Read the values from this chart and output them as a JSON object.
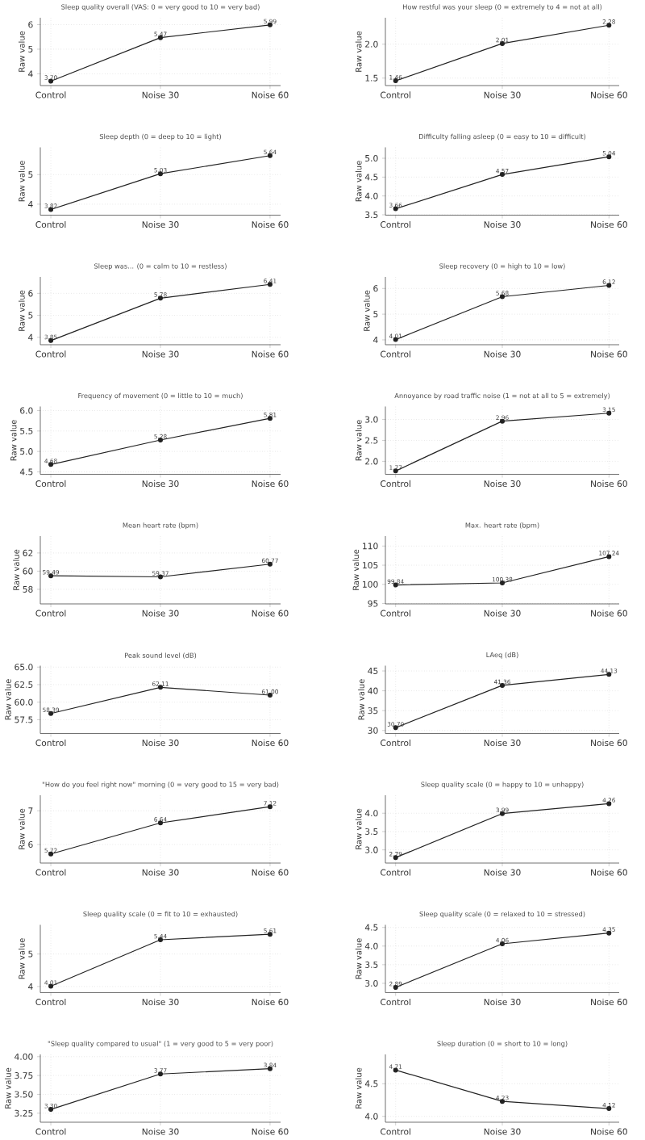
{
  "chart_data": [
    {
      "type": "line",
      "title": "Sleep quality overall (VAS: 0 = very good to 10 = very bad)",
      "ylabel": "Raw value",
      "categories": [
        "Control",
        "Noise 30",
        "Noise 60"
      ],
      "values": [
        3.7,
        5.47,
        5.99
      ],
      "value_labels": [
        "3.70",
        "5.47",
        "5.99"
      ],
      "color": "#222222",
      "ylim": [
        3.52,
        6.28
      ],
      "yticks": [
        4,
        5,
        6
      ],
      "grid": true,
      "marker": "circle"
    },
    {
      "type": "line",
      "title": "How restful was your sleep (0 = extremely to 4 = not at all)",
      "ylabel": "Raw value",
      "categories": [
        "Control",
        "Noise 30",
        "Noise 60"
      ],
      "values": [
        1.46,
        2.01,
        2.28
      ],
      "value_labels": [
        "1.46",
        "2.01",
        "2.28"
      ],
      "color": "#222222",
      "ylim": [
        1.39,
        2.39
      ],
      "yticks": [
        1.5,
        {
          "value": 2,
          "label": "2.0"
        }
      ],
      "grid": true,
      "marker": "circle"
    },
    {
      "type": "line",
      "title": "Sleep depth (0 = deep to 10 = light)",
      "ylabel": "Raw value",
      "categories": [
        "Control",
        "Noise 30",
        "Noise 60"
      ],
      "values": [
        3.82,
        5.03,
        5.64
      ],
      "value_labels": [
        "3.82",
        "5.03",
        "5.64"
      ],
      "color": "#222222",
      "ylim": [
        3.63,
        5.92
      ],
      "yticks": [
        4,
        5
      ],
      "grid": true,
      "marker": "circle"
    },
    {
      "type": "line",
      "title": "Difficulty falling asleep (0 = easy to 10 = difficult)",
      "ylabel": "Raw value",
      "categories": [
        "Control",
        "Noise 30",
        "Noise 60"
      ],
      "values": [
        3.66,
        4.57,
        5.04
      ],
      "value_labels": [
        "3.66",
        "4.57",
        "5.04"
      ],
      "color": "#222222",
      "ylim": [
        3.49,
        5.29
      ],
      "yticks": [
        3.5,
        {
          "value": 4,
          "label": "4.0"
        },
        4.5,
        {
          "value": 5,
          "label": "5.0"
        }
      ],
      "grid": true,
      "marker": "circle"
    },
    {
      "type": "line",
      "title": "Sleep was... (0 = calm to 10 = restless)",
      "ylabel": "Raw value",
      "categories": [
        "Control",
        "Noise 30",
        "Noise 60"
      ],
      "values": [
        3.85,
        5.78,
        6.41
      ],
      "value_labels": [
        "3.85",
        "5.78",
        "6.41"
      ],
      "color": "#222222",
      "ylim": [
        3.66,
        6.75
      ],
      "yticks": [
        4,
        5,
        6
      ],
      "grid": true,
      "marker": "circle"
    },
    {
      "type": "line",
      "title": "Sleep recovery (0 = high to 10 = low)",
      "ylabel": "Raw value",
      "categories": [
        "Control",
        "Noise 30",
        "Noise 60"
      ],
      "values": [
        4.01,
        5.68,
        6.12
      ],
      "value_labels": [
        "4.01",
        "5.68",
        "6.12"
      ],
      "color": "#222222",
      "ylim": [
        3.81,
        6.45
      ],
      "yticks": [
        4,
        5,
        6
      ],
      "grid": true,
      "marker": "circle"
    },
    {
      "type": "line",
      "title": "Frequency of movement (0 = little to 10 = much)",
      "ylabel": "Raw value",
      "categories": [
        "Control",
        "Noise 30",
        "Noise 60"
      ],
      "values": [
        4.68,
        5.28,
        5.81
      ],
      "value_labels": [
        "4.68",
        "5.28",
        "5.81"
      ],
      "color": "#222222",
      "ylim": [
        4.44,
        6.1
      ],
      "yticks": [
        4.5,
        {
          "value": 5,
          "label": "5.0"
        },
        5.5,
        {
          "value": 6,
          "label": "6.0"
        }
      ],
      "grid": true,
      "marker": "circle"
    },
    {
      "type": "line",
      "title": "Annoyance by road traffic noise (1 = not at all to 5 = extremely)",
      "ylabel": "Raw value",
      "categories": [
        "Control",
        "Noise 30",
        "Noise 60"
      ],
      "values": [
        1.77,
        2.96,
        3.15
      ],
      "value_labels": [
        "1.77",
        "2.96",
        "3.15"
      ],
      "color": "#222222",
      "ylim": [
        1.69,
        3.31
      ],
      "yticks": [
        {
          "value": 2,
          "label": "2.0"
        },
        2.5,
        {
          "value": 3,
          "label": "3.0"
        }
      ],
      "grid": true,
      "marker": "circle"
    },
    {
      "type": "line",
      "title": "Mean heart rate (bpm)",
      "ylabel": "Raw value",
      "categories": [
        "Control",
        "Noise 30",
        "Noise 60"
      ],
      "values": [
        59.49,
        59.37,
        60.77
      ],
      "value_labels": [
        "59.49",
        "59.37",
        "60.77"
      ],
      "color": "#222222",
      "ylim": [
        56.39,
        63.86
      ],
      "yticks": [
        58,
        60,
        62
      ],
      "grid": true,
      "marker": "circle"
    },
    {
      "type": "line",
      "title": "Max. heart rate (bpm)",
      "ylabel": "Raw value",
      "categories": [
        "Control",
        "Noise 30",
        "Noise 60"
      ],
      "values": [
        99.84,
        100.38,
        107.24
      ],
      "value_labels": [
        "99.84",
        "100.38",
        "107.24"
      ],
      "color": "#222222",
      "ylim": [
        94.9,
        112.6
      ],
      "yticks": [
        95,
        100,
        105,
        110
      ],
      "grid": true,
      "marker": "circle"
    },
    {
      "type": "line",
      "title": "Peak sound level (dB)",
      "ylabel": "Raw value",
      "categories": [
        "Control",
        "Noise 30",
        "Noise 60"
      ],
      "values": [
        58.39,
        62.11,
        61.0
      ],
      "value_labels": [
        "58.39",
        "62.11",
        "61.00"
      ],
      "color": "#222222",
      "ylim": [
        55.54,
        65.2
      ],
      "yticks": [
        57.5,
        {
          "value": 60,
          "label": "60.0"
        },
        62.5,
        {
          "value": 65,
          "label": "65.0"
        }
      ],
      "grid": true,
      "marker": "circle"
    },
    {
      "type": "line",
      "title": "LAeq (dB)",
      "ylabel": "Raw value",
      "categories": [
        "Control",
        "Noise 30",
        "Noise 60"
      ],
      "values": [
        30.7,
        41.36,
        44.13
      ],
      "value_labels": [
        "30.70",
        "41.36",
        "44.13"
      ],
      "color": "#222222",
      "ylim": [
        29.24,
        46.33
      ],
      "yticks": [
        30,
        35,
        40,
        45
      ],
      "grid": true,
      "marker": "circle"
    },
    {
      "type": "line",
      "title": "\"How do you feel right now\" morning (0 = very good to 15 = very bad)",
      "ylabel": "Raw value",
      "categories": [
        "Control",
        "Noise 30",
        "Noise 60"
      ],
      "values": [
        5.72,
        6.64,
        7.12
      ],
      "value_labels": [
        "5.72",
        "6.64",
        "7.12"
      ],
      "color": "#222222",
      "ylim": [
        5.45,
        7.46
      ],
      "yticks": [
        6,
        7
      ],
      "grid": true,
      "marker": "circle"
    },
    {
      "type": "line",
      "title": "Sleep quality scale (0 = happy to 10 = unhappy)",
      "ylabel": "Raw value",
      "categories": [
        "Control",
        "Noise 30",
        "Noise 60"
      ],
      "values": [
        2.79,
        3.99,
        4.26
      ],
      "value_labels": [
        "2.79",
        "3.99",
        "4.26"
      ],
      "color": "#222222",
      "ylim": [
        2.64,
        4.49
      ],
      "yticks": [
        {
          "value": 3,
          "label": "3.0"
        },
        3.5,
        {
          "value": 4,
          "label": "4.0"
        }
      ],
      "grid": true,
      "marker": "circle"
    },
    {
      "type": "line",
      "title": "Sleep quality scale (0 = fit to 10 = exhausted)",
      "ylabel": "Raw value",
      "categories": [
        "Control",
        "Noise 30",
        "Noise 60"
      ],
      "values": [
        4.01,
        5.44,
        5.61
      ],
      "value_labels": [
        "4.01",
        "5.44",
        "5.61"
      ],
      "color": "#222222",
      "ylim": [
        3.81,
        5.9
      ],
      "yticks": [
        4,
        5
      ],
      "grid": true,
      "marker": "circle"
    },
    {
      "type": "line",
      "title": "Sleep quality scale (0 = relaxed to 10 = stressed)",
      "ylabel": "Raw value",
      "categories": [
        "Control",
        "Noise 30",
        "Noise 60"
      ],
      "values": [
        2.89,
        4.06,
        4.35
      ],
      "value_labels": [
        "2.89",
        "4.06",
        "4.35"
      ],
      "color": "#222222",
      "ylim": [
        2.75,
        4.57
      ],
      "yticks": [
        {
          "value": 3,
          "label": "3.0"
        },
        3.5,
        {
          "value": 4,
          "label": "4.0"
        },
        4.5
      ],
      "grid": true,
      "marker": "circle"
    },
    {
      "type": "line",
      "title": "\"Sleep quality compared to usual\" (1 = very good to 5 = very poor)",
      "ylabel": "Raw value",
      "categories": [
        "Control",
        "Noise 30",
        "Noise 60"
      ],
      "values": [
        3.3,
        3.77,
        3.84
      ],
      "value_labels": [
        "3.30",
        "3.77",
        "3.84"
      ],
      "color": "#222222",
      "ylim": [
        3.13,
        4.03
      ],
      "yticks": [
        3.25,
        {
          "value": 3.5,
          "label": "3.50"
        },
        3.75,
        {
          "value": 4,
          "label": "4.00"
        }
      ],
      "grid": true,
      "marker": "circle"
    },
    {
      "type": "line",
      "title": "Sleep duration (0 = short to 10 = long)",
      "ylabel": "Raw value",
      "categories": [
        "Control",
        "Noise 30",
        "Noise 60"
      ],
      "values": [
        4.71,
        4.23,
        4.12
      ],
      "value_labels": [
        "4.71",
        "4.23",
        "4.12"
      ],
      "color": "#222222",
      "ylim": [
        3.91,
        4.95
      ],
      "yticks": [
        {
          "value": 4,
          "label": "4.0"
        },
        4.5
      ],
      "grid": true,
      "marker": "circle"
    }
  ]
}
